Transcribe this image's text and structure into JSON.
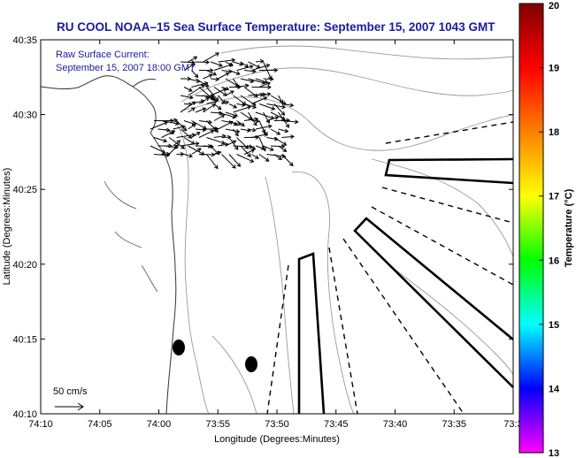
{
  "chart_data": {
    "type": "map",
    "title": "RU COOL  NOAA–15  Sea Surface Temperature:  September 15, 2007 1043 GMT",
    "annotation_lines": [
      "Raw Surface Current:",
      "September 15, 2007 18:00 GMT"
    ],
    "xlabel": "Longitude (Degrees:Minutes)",
    "ylabel": "Latitude (Degrees:Minutes)",
    "x_ticks": [
      "74:10",
      "74:05",
      "74:00",
      "73:55",
      "73:50",
      "73:45",
      "73:40",
      "73:35",
      "73:3"
    ],
    "y_ticks": [
      "40:10",
      "40:15",
      "40:20",
      "40:25",
      "40:30",
      "40:35"
    ],
    "xlim_minutes_west": [
      10,
      30
    ],
    "ylim_minutes_north": [
      10,
      35
    ],
    "colorbar": {
      "label": "Temperature (°C)",
      "ticks": [
        13,
        14,
        15,
        16,
        17,
        18,
        19,
        20
      ],
      "range": [
        13,
        20
      ],
      "colors": [
        "#ff00ff",
        "#0000ff",
        "#00ffff",
        "#00ff00",
        "#ffff00",
        "#ff8000",
        "#ff0000",
        "#800000"
      ]
    },
    "scale_arrow_label": "50 cm/s",
    "grid": false,
    "legend": "none"
  }
}
